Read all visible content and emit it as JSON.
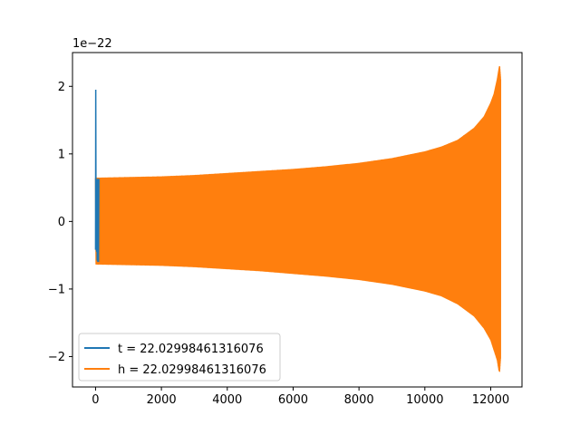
{
  "chart_data": {
    "type": "line",
    "title": "",
    "xlabel": "",
    "ylabel": "",
    "y_offset_label": "1e−22",
    "xlim": [
      -700,
      12950
    ],
    "ylim": [
      -2.45,
      2.5
    ],
    "x_ticks": [
      0,
      2000,
      4000,
      6000,
      8000,
      10000,
      12000
    ],
    "x_tick_labels": [
      "0",
      "2000",
      "4000",
      "6000",
      "8000",
      "10000",
      "12000"
    ],
    "y_ticks": [
      -2,
      -1,
      0,
      1,
      2
    ],
    "y_tick_labels": [
      "−2",
      "−1",
      "0",
      "1",
      "2"
    ],
    "grid": false,
    "legend_position": "lower-left",
    "series": [
      {
        "name": "t = 22.02998461316076",
        "color": "#1f77b4",
        "x": [
          0,
          6,
          12,
          18,
          24,
          30,
          40,
          50,
          60,
          70,
          80,
          90,
          100
        ],
        "y": [
          -0.42,
          1.95,
          0.6,
          -0.3,
          0.55,
          -0.45,
          0.62,
          -0.58,
          0.63,
          -0.6,
          0.62,
          -0.6,
          0.63
        ]
      },
      {
        "name": "h = 22.02998461316076",
        "color": "#ff7f0e",
        "x_start": 0,
        "x_end": 12300,
        "peak_x": 12270,
        "envelope": {
          "x": [
            0,
            1000,
            2000,
            3000,
            4000,
            5000,
            6000,
            7000,
            8000,
            9000,
            10000,
            10500,
            11000,
            11500,
            11800,
            12000,
            12100,
            12200,
            12250,
            12270,
            12300
          ],
          "upper": [
            0.64,
            0.65,
            0.66,
            0.68,
            0.71,
            0.74,
            0.77,
            0.81,
            0.86,
            0.93,
            1.03,
            1.1,
            1.2,
            1.38,
            1.55,
            1.75,
            1.88,
            2.1,
            2.25,
            2.3,
            2.1
          ],
          "lower": [
            -0.63,
            -0.64,
            -0.65,
            -0.67,
            -0.7,
            -0.73,
            -0.77,
            -0.81,
            -0.86,
            -0.93,
            -1.03,
            -1.1,
            -1.22,
            -1.4,
            -1.58,
            -1.75,
            -1.9,
            -2.05,
            -2.2,
            -2.22,
            -2.0
          ]
        }
      }
    ]
  }
}
